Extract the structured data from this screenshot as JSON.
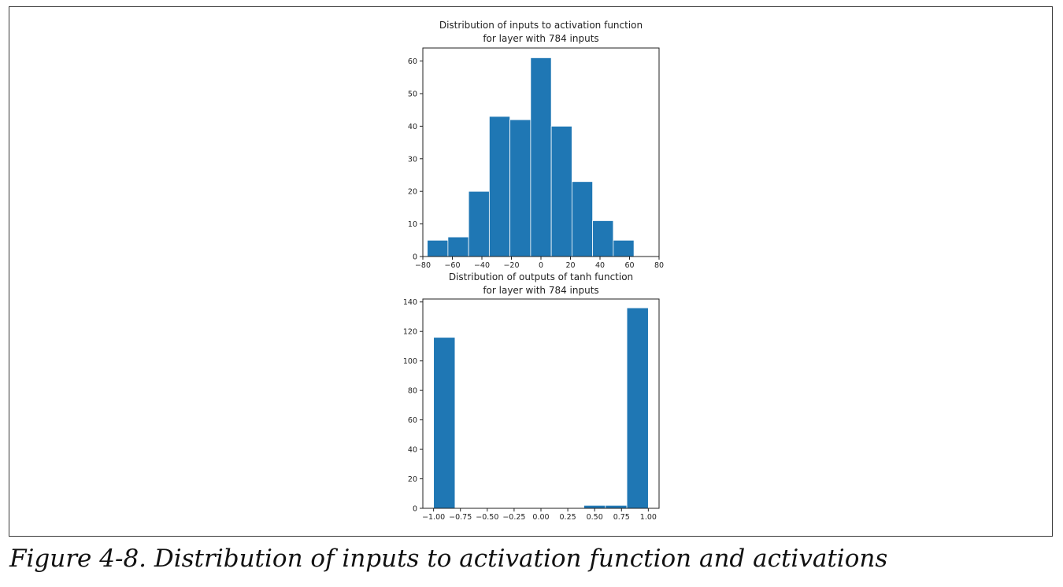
{
  "caption": "Figure 4-8. Distribution of inputs to activation function and activations",
  "bar_color": "#1f77b4",
  "chart_data": [
    {
      "type": "bar",
      "histogram": true,
      "title_lines": [
        "Distribution of inputs to activation function",
        "for layer with 784 inputs"
      ],
      "bins": [
        {
          "start": -77,
          "end": -63,
          "count": 5
        },
        {
          "start": -63,
          "end": -49,
          "count": 6
        },
        {
          "start": -49,
          "end": -35,
          "count": 20
        },
        {
          "start": -35,
          "end": -21,
          "count": 43
        },
        {
          "start": -21,
          "end": -7,
          "count": 42
        },
        {
          "start": -7,
          "end": 7,
          "count": 61
        },
        {
          "start": 7,
          "end": 21,
          "count": 40
        },
        {
          "start": 21,
          "end": 35,
          "count": 23
        },
        {
          "start": 35,
          "end": 49,
          "count": 11
        },
        {
          "start": 49,
          "end": 63,
          "count": 5
        }
      ],
      "xlim": [
        -80,
        80
      ],
      "ylim": [
        0,
        64
      ],
      "xticks": [
        -80,
        -60,
        -40,
        -20,
        0,
        20,
        40,
        60,
        80
      ],
      "xtick_labels": [
        "−80",
        "−60",
        "−40",
        "−20",
        "0",
        "20",
        "40",
        "60",
        "80"
      ],
      "yticks": [
        0,
        10,
        20,
        30,
        40,
        50,
        60
      ],
      "ytick_labels": [
        "0",
        "10",
        "20",
        "30",
        "40",
        "50",
        "60"
      ],
      "grid": false
    },
    {
      "type": "bar",
      "histogram": true,
      "title_lines": [
        "Distribution of outputs of tanh function",
        "for layer with 784 inputs"
      ],
      "bins": [
        {
          "start": -1.0,
          "end": -0.8,
          "count": 116
        },
        {
          "start": -0.8,
          "end": -0.6,
          "count": 0
        },
        {
          "start": -0.6,
          "end": -0.4,
          "count": 0
        },
        {
          "start": -0.4,
          "end": -0.2,
          "count": 0
        },
        {
          "start": -0.2,
          "end": 0.0,
          "count": 0
        },
        {
          "start": 0.0,
          "end": 0.2,
          "count": 0
        },
        {
          "start": 0.2,
          "end": 0.4,
          "count": 0
        },
        {
          "start": 0.4,
          "end": 0.6,
          "count": 2
        },
        {
          "start": 0.6,
          "end": 0.8,
          "count": 2
        },
        {
          "start": 0.8,
          "end": 1.0,
          "count": 136
        }
      ],
      "xlim": [
        -1.1,
        1.1
      ],
      "ylim": [
        0,
        142
      ],
      "xticks": [
        -1.0,
        -0.75,
        -0.5,
        -0.25,
        0.0,
        0.25,
        0.5,
        0.75,
        1.0
      ],
      "xtick_labels": [
        "−1.00",
        "−0.75",
        "−0.50",
        "−0.25",
        "0.00",
        "0.25",
        "0.50",
        "0.75",
        "1.00"
      ],
      "yticks": [
        0,
        20,
        40,
        60,
        80,
        100,
        120,
        140
      ],
      "ytick_labels": [
        "0",
        "20",
        "40",
        "60",
        "80",
        "100",
        "120",
        "140"
      ],
      "grid": false
    }
  ]
}
